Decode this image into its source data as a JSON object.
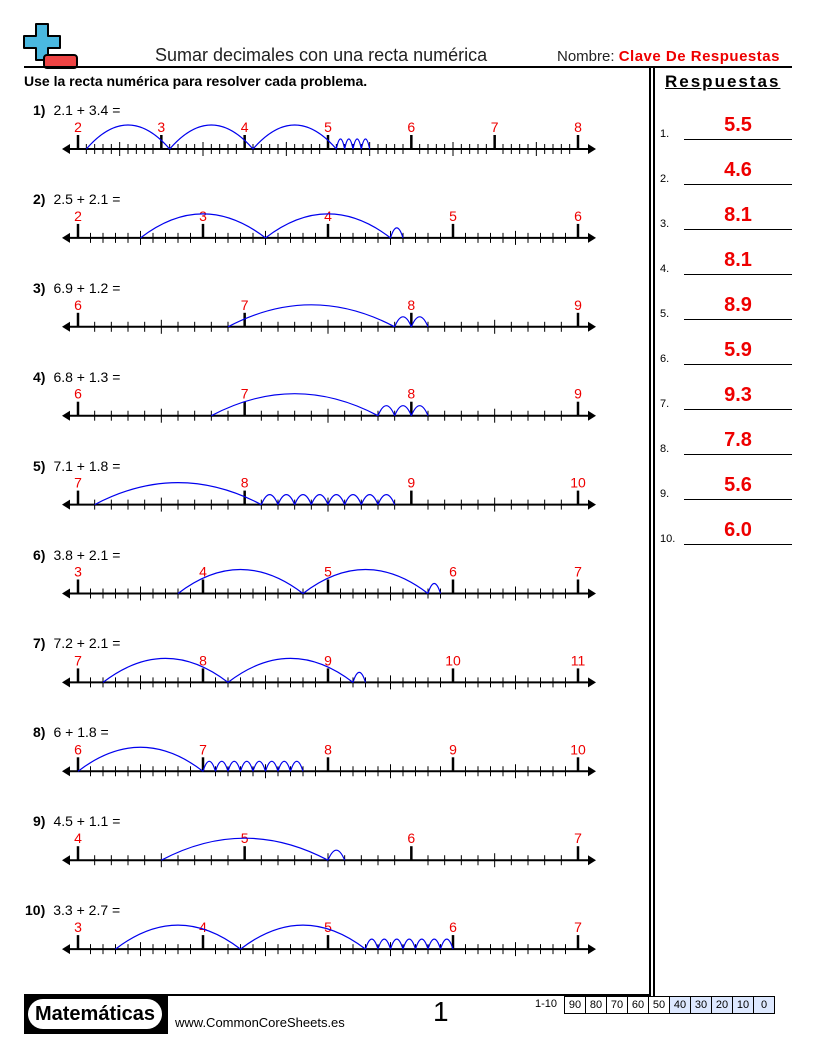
{
  "header": {
    "title": "Sumar decimales con una recta numérica",
    "name_label": "Nombre:",
    "name_value": "Clave De Respuestas",
    "instructions": "Use la recta numérica para resolver cada problema."
  },
  "colors": {
    "label": "#ee0000",
    "arc": "#0000ee",
    "answer": "#ee0000",
    "logo_blue": "#4ab8e0",
    "logo_red": "#ee4444"
  },
  "problems": [
    {
      "num": "1)",
      "text": "2.1 + 3.4 =",
      "a": 2.1,
      "b": 3.4,
      "labels": [
        2,
        3,
        4,
        5,
        6,
        7,
        8
      ]
    },
    {
      "num": "2)",
      "text": "2.5 + 2.1 =",
      "a": 2.5,
      "b": 2.1,
      "labels": [
        2,
        3,
        4,
        5,
        6
      ]
    },
    {
      "num": "3)",
      "text": "6.9 + 1.2 =",
      "a": 6.9,
      "b": 1.2,
      "labels": [
        6,
        7,
        8,
        9
      ]
    },
    {
      "num": "4)",
      "text": "6.8 + 1.3 =",
      "a": 6.8,
      "b": 1.3,
      "labels": [
        6,
        7,
        8,
        9
      ]
    },
    {
      "num": "5)",
      "text": "7.1 + 1.8 =",
      "a": 7.1,
      "b": 1.8,
      "labels": [
        7,
        8,
        9,
        10
      ]
    },
    {
      "num": "6)",
      "text": "3.8 + 2.1 =",
      "a": 3.8,
      "b": 2.1,
      "labels": [
        3,
        4,
        5,
        6,
        7
      ]
    },
    {
      "num": "7)",
      "text": "7.2 + 2.1 =",
      "a": 7.2,
      "b": 2.1,
      "labels": [
        7,
        8,
        9,
        10,
        11
      ]
    },
    {
      "num": "8)",
      "text": "6 + 1.8 =",
      "a": 6,
      "b": 1.8,
      "labels": [
        6,
        7,
        8,
        9,
        10
      ]
    },
    {
      "num": "9)",
      "text": "4.5 + 1.1 =",
      "a": 4.5,
      "b": 1.1,
      "labels": [
        4,
        5,
        6,
        7
      ]
    },
    {
      "num": "10)",
      "text": "3.3 + 2.7 =",
      "a": 3.3,
      "b": 2.7,
      "labels": [
        3,
        4,
        5,
        6,
        7
      ]
    }
  ],
  "answers": {
    "title": "Respuestas",
    "items": [
      {
        "num": "1.",
        "value": "5.5"
      },
      {
        "num": "2.",
        "value": "4.6"
      },
      {
        "num": "3.",
        "value": "8.1"
      },
      {
        "num": "4.",
        "value": "8.1"
      },
      {
        "num": "5.",
        "value": "8.9"
      },
      {
        "num": "6.",
        "value": "5.9"
      },
      {
        "num": "7.",
        "value": "9.3"
      },
      {
        "num": "8.",
        "value": "7.8"
      },
      {
        "num": "9.",
        "value": "5.6"
      },
      {
        "num": "10.",
        "value": "6.0"
      }
    ]
  },
  "footer": {
    "brand": "Matemáticas",
    "site": "www.CommonCoreSheets.es",
    "page": "1",
    "score_label": "1-10",
    "scores": [
      "90",
      "80",
      "70",
      "60",
      "50",
      "40",
      "30",
      "20",
      "10",
      "0"
    ]
  }
}
